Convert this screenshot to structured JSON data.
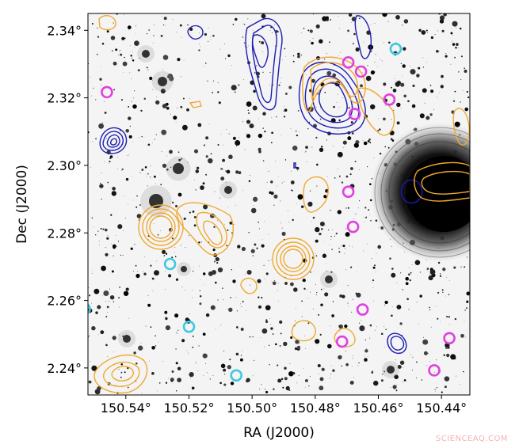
{
  "chart_data": {
    "type": "scatter",
    "xlabel": "RA (J2000)",
    "ylabel": "Dec (J2000)",
    "x_ticks": [
      "150.54°",
      "150.52°",
      "150.50°",
      "150.48°",
      "150.46°",
      "150.44°"
    ],
    "y_ticks": [
      "2.34°",
      "2.32°",
      "2.30°",
      "2.28°",
      "2.26°",
      "2.24°"
    ],
    "x_tick_values": [
      150.54,
      150.52,
      150.5,
      150.48,
      150.46,
      150.44
    ],
    "y_tick_values": [
      2.34,
      2.32,
      2.3,
      2.28,
      2.26,
      2.24
    ],
    "xlim": [
      150.552,
      150.431
    ],
    "ylim": [
      2.232,
      2.345
    ],
    "background": "grayscale deep-field image (inverted)",
    "marker_colors": {
      "magenta": "#e040e0",
      "cyan": "#40c8e0",
      "orange_contours": "#f0a830",
      "blue_contours": "#1c1cb4"
    },
    "series": [
      {
        "color": "#e040e0",
        "marker": "circle",
        "points": [
          [
            150.546,
            2.3217
          ],
          [
            150.4695,
            2.3305
          ],
          [
            150.4655,
            2.3278
          ],
          [
            150.4675,
            2.3152
          ],
          [
            150.4565,
            2.3195
          ],
          [
            150.4695,
            2.2922
          ],
          [
            150.468,
            2.2818
          ],
          [
            150.465,
            2.2573
          ],
          [
            150.4715,
            2.2478
          ],
          [
            150.4375,
            2.2488
          ],
          [
            150.4423,
            2.2393
          ]
        ]
      },
      {
        "color": "#40c8e0",
        "marker": "circle",
        "points": [
          [
            150.4545,
            2.3345
          ],
          [
            150.526,
            2.2708
          ],
          [
            150.52,
            2.2522
          ],
          [
            150.505,
            2.2378
          ],
          [
            150.553,
            2.2575
          ]
        ]
      }
    ]
  },
  "watermark": "SCIENCEAQ.COM"
}
